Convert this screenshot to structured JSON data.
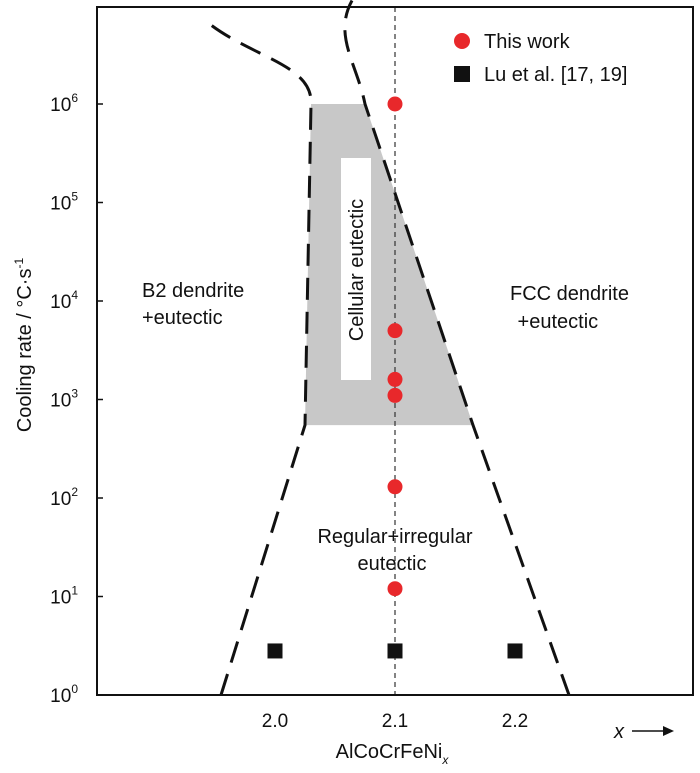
{
  "chart_data": {
    "type": "scatter",
    "x_label": "AlCoCrFeNi",
    "x_label_subscript": "x",
    "x_arrow_label": "x",
    "y_label": "Cooling rate / °C·s",
    "y_label_superscript": "-1",
    "y_scale": "log",
    "xlim": [
      1.82,
      2.33
    ],
    "ylim": [
      1,
      10000000
    ],
    "x_ticks": [
      {
        "value": 2.0,
        "label": "2.0"
      },
      {
        "value": 2.1,
        "label": "2.1"
      },
      {
        "value": 2.2,
        "label": "2.2"
      }
    ],
    "y_ticks": [
      {
        "value": 1,
        "base": "10",
        "exp": "0"
      },
      {
        "value": 10,
        "base": "10",
        "exp": "1"
      },
      {
        "value": 100,
        "base": "10",
        "exp": "2"
      },
      {
        "value": 1000,
        "base": "10",
        "exp": "3"
      },
      {
        "value": 10000,
        "base": "10",
        "exp": "4"
      },
      {
        "value": 100000,
        "base": "10",
        "exp": "5"
      },
      {
        "value": 1000000,
        "base": "10",
        "exp": "6"
      }
    ],
    "series": [
      {
        "name": "This work",
        "marker": "circle",
        "color": "#e8282b",
        "points": [
          {
            "x": 2.1,
            "y": 1000000
          },
          {
            "x": 2.1,
            "y": 5000
          },
          {
            "x": 2.1,
            "y": 1600
          },
          {
            "x": 2.1,
            "y": 1100
          },
          {
            "x": 2.1,
            "y": 130
          },
          {
            "x": 2.1,
            "y": 12
          }
        ]
      },
      {
        "name": "Lu et al. [17, 19]",
        "marker": "square",
        "color": "#111111",
        "points": [
          {
            "x": 2.0,
            "y": 2.8
          },
          {
            "x": 2.1,
            "y": 2.8
          },
          {
            "x": 2.2,
            "y": 2.8
          }
        ]
      }
    ],
    "reference_line": {
      "x": 2.1,
      "style": "dashed-thin",
      "color": "#333333"
    },
    "shaded_region": {
      "color": "#c8c8c8",
      "y_range": [
        550,
        1000000
      ]
    },
    "boundaries": [
      {
        "name": "left-boundary",
        "style": "long-dash",
        "points": [
          [
            1.955,
            1.0
          ],
          [
            2.025,
            550
          ],
          [
            2.03,
            1000000
          ],
          [
            1.95,
            6000000
          ]
        ]
      },
      {
        "name": "right-boundary",
        "style": "long-dash",
        "points": [
          [
            2.245,
            1.0
          ],
          [
            2.165,
            550
          ],
          [
            2.075,
            1000000
          ],
          [
            2.06,
            10000000
          ]
        ]
      }
    ],
    "regions": [
      {
        "name": "region-b2",
        "lines": [
          "B2 dendrite",
          "+eutectic"
        ]
      },
      {
        "name": "region-fcc",
        "lines": [
          "FCC dendrite",
          " +eutectic"
        ]
      },
      {
        "name": "region-regular",
        "lines": [
          "Regular+irregular",
          "eutectic"
        ]
      },
      {
        "name": "region-cellular",
        "lines": [
          "Cellular eutectic"
        ]
      }
    ],
    "legend": {
      "position": "top-right"
    },
    "grid": false
  }
}
